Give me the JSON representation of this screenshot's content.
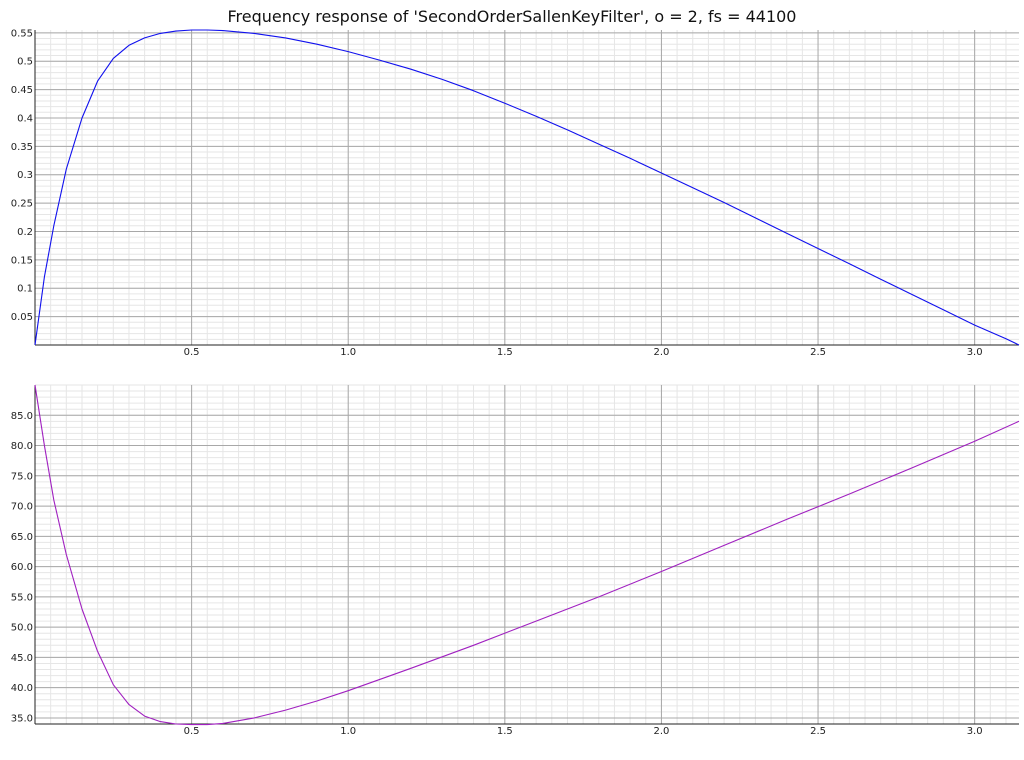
{
  "chart_data": [
    {
      "type": "line",
      "title": "Frequency response of 'SecondOrderSallenKeyFilter', o = 2, fs = 44100",
      "xlim": [
        0,
        3.14159
      ],
      "ylim": [
        0,
        0.555
      ],
      "x_ticks": [
        0.5,
        1.0,
        1.5,
        2.0,
        2.5,
        3.0
      ],
      "x_tick_labels": [
        "0.5",
        "1.0",
        "1.5",
        "2.0",
        "2.5",
        "3.0"
      ],
      "y_ticks": [
        0.05,
        0.1,
        0.15,
        0.2,
        0.25,
        0.3,
        0.35,
        0.4,
        0.45,
        0.5,
        0.55
      ],
      "y_tick_labels": [
        "0.05",
        "0.1",
        "0.15",
        "0.2",
        "0.25",
        "0.3",
        "0.35",
        "0.4",
        "0.45",
        "0.5",
        "0.55"
      ],
      "grid": true,
      "color": "#1010ee",
      "x": [
        0,
        0.03,
        0.06,
        0.1,
        0.15,
        0.2,
        0.25,
        0.3,
        0.35,
        0.4,
        0.45,
        0.5,
        0.55,
        0.6,
        0.7,
        0.8,
        0.9,
        1.0,
        1.1,
        1.2,
        1.3,
        1.4,
        1.5,
        1.6,
        1.7,
        1.8,
        1.9,
        2.0,
        2.1,
        2.2,
        2.3,
        2.4,
        2.5,
        2.6,
        2.7,
        2.8,
        2.9,
        3.0,
        3.1,
        3.14159
      ],
      "values": [
        0,
        0.12,
        0.21,
        0.31,
        0.4,
        0.465,
        0.505,
        0.528,
        0.541,
        0.549,
        0.553,
        0.555,
        0.555,
        0.554,
        0.549,
        0.541,
        0.53,
        0.517,
        0.502,
        0.486,
        0.468,
        0.448,
        0.426,
        0.403,
        0.379,
        0.354,
        0.329,
        0.303,
        0.277,
        0.251,
        0.224,
        0.197,
        0.17,
        0.143,
        0.116,
        0.089,
        0.062,
        0.035,
        0.011,
        0
      ]
    },
    {
      "type": "line",
      "title": "",
      "xlim": [
        0,
        3.14159
      ],
      "ylim": [
        34,
        90
      ],
      "x_ticks": [
        0.5,
        1.0,
        1.5,
        2.0,
        2.5,
        3.0
      ],
      "x_tick_labels": [
        "0.5",
        "1.0",
        "1.5",
        "2.0",
        "2.5",
        "3.0"
      ],
      "y_ticks": [
        35,
        40,
        45,
        50,
        55,
        60,
        65,
        70,
        75,
        80,
        85
      ],
      "y_tick_labels": [
        "35.0",
        "40.0",
        "45.0",
        "50.0",
        "55.0",
        "60.0",
        "65.0",
        "70.0",
        "75.0",
        "80.0",
        "85.0"
      ],
      "grid": true,
      "color": "#a020c0",
      "x": [
        0,
        0.03,
        0.06,
        0.1,
        0.15,
        0.2,
        0.25,
        0.3,
        0.35,
        0.4,
        0.45,
        0.5,
        0.55,
        0.6,
        0.7,
        0.8,
        0.9,
        1.0,
        1.2,
        1.4,
        1.6,
        1.8,
        2.0,
        2.2,
        2.4,
        2.6,
        2.8,
        3.0,
        3.14159
      ],
      "values": [
        90,
        80,
        71,
        62,
        53,
        46,
        40.5,
        37.2,
        35.3,
        34.4,
        34.0,
        33.9,
        33.9,
        34.1,
        35.0,
        36.3,
        37.8,
        39.5,
        43.2,
        47.0,
        51.0,
        55.0,
        59.2,
        63.5,
        67.8,
        72.0,
        76.3,
        80.7,
        84.0
      ]
    }
  ]
}
